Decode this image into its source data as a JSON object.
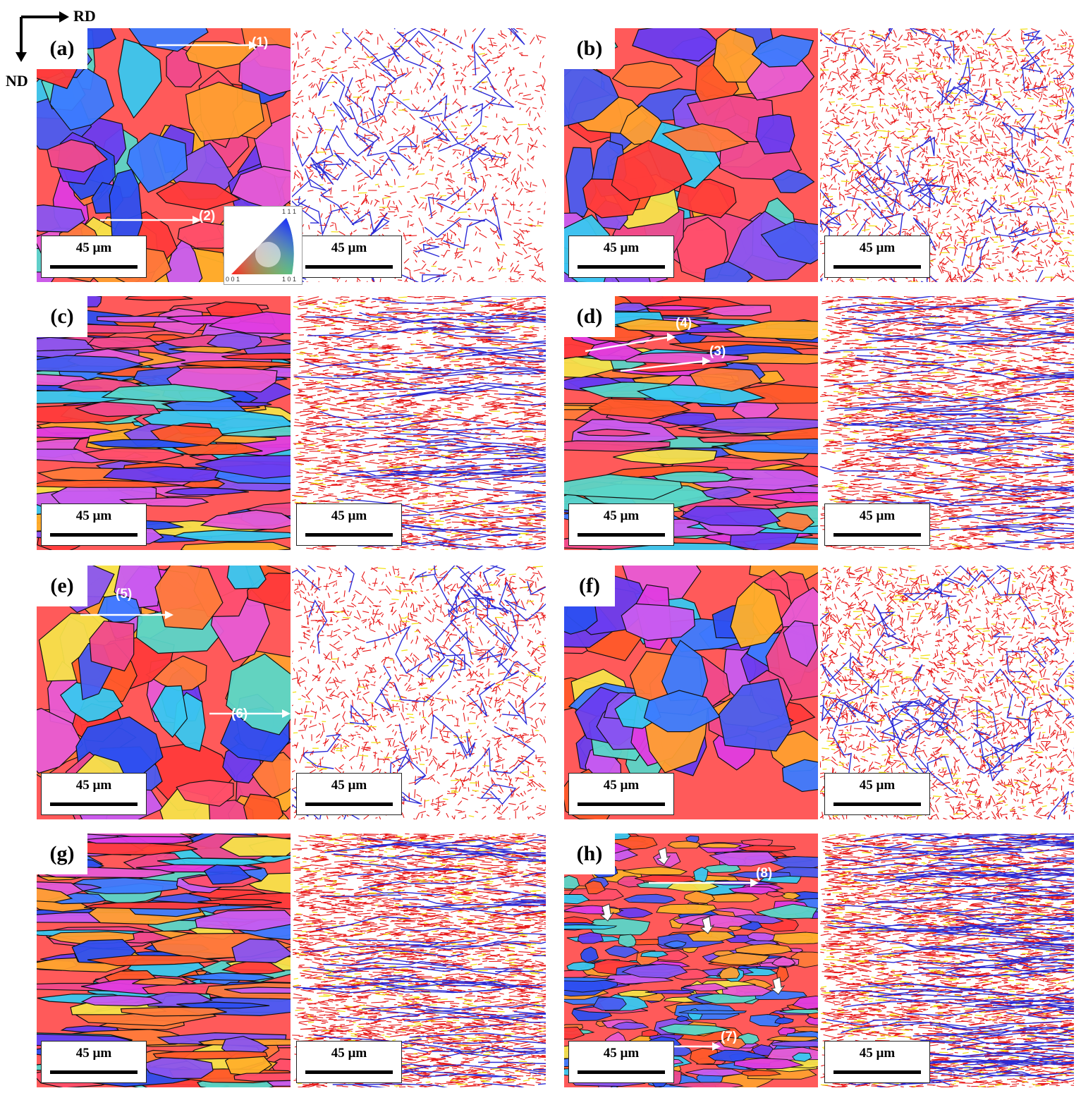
{
  "axes": {
    "rd_label": "RD",
    "nd_label": "ND"
  },
  "scale_text": "45 µm",
  "ipf_key": {
    "top": "1 1 1",
    "bottom_left": "0 0 1",
    "bottom_right": "1 0 1"
  },
  "panels": [
    {
      "id": "a",
      "label": "(a)",
      "arrows": [
        {
          "label": "(1)"
        },
        {
          "label": "(2)"
        }
      ]
    },
    {
      "id": "b",
      "label": "(b)",
      "arrows": []
    },
    {
      "id": "c",
      "label": "(c)",
      "arrows": []
    },
    {
      "id": "d",
      "label": "(d)",
      "arrows": [
        {
          "label": "(4)"
        },
        {
          "label": "(3)"
        }
      ]
    },
    {
      "id": "e",
      "label": "(e)",
      "arrows": [
        {
          "label": "(5)"
        },
        {
          "label": "(6)"
        }
      ]
    },
    {
      "id": "f",
      "label": "(f)",
      "arrows": []
    },
    {
      "id": "g",
      "label": "(g)",
      "arrows": []
    },
    {
      "id": "h",
      "label": "(h)",
      "arrows": [
        {
          "label": "(8)"
        },
        {
          "label": "(7)"
        }
      ]
    }
  ],
  "colors": {
    "grain_boundary": "#111111",
    "hagb": "#2b2bd6",
    "lagb": "#e81818",
    "twin": "#f2e21a"
  }
}
